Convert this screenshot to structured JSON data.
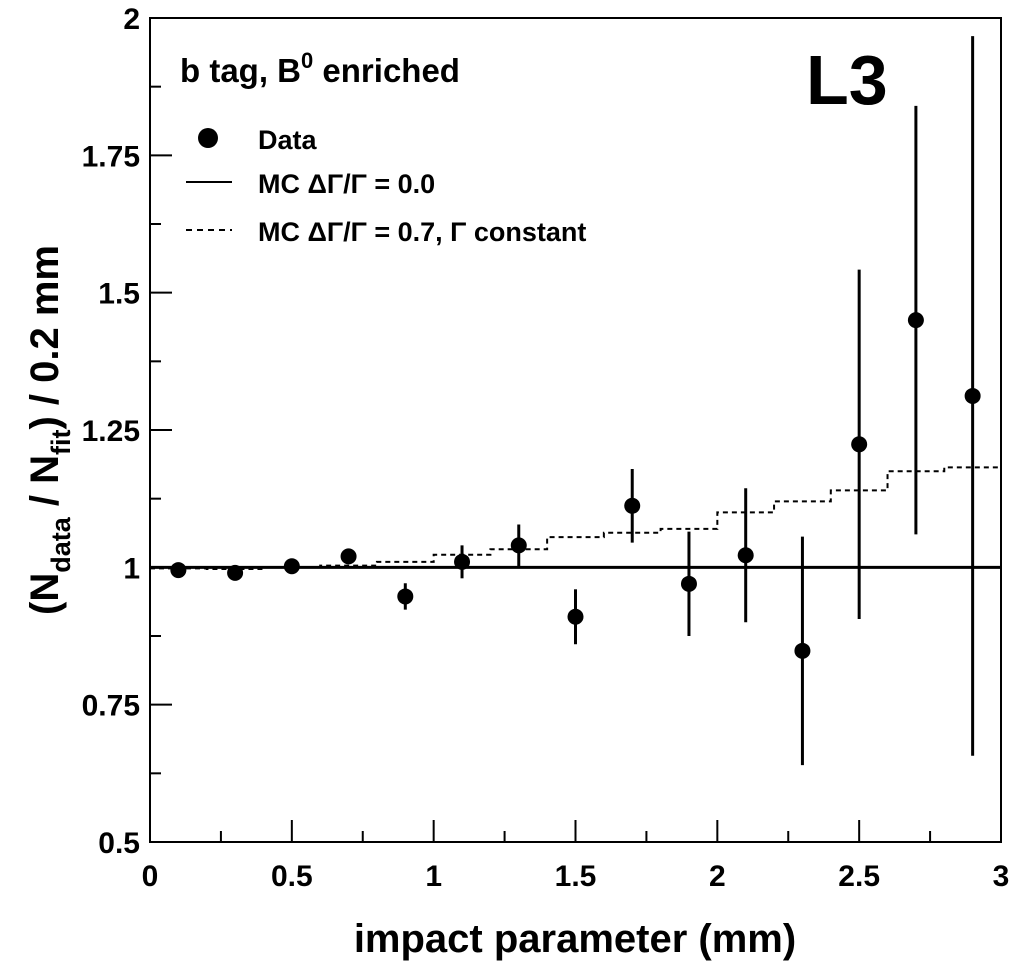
{
  "chart_data": {
    "type": "scatter",
    "title": "",
    "xlabel": "impact parameter (mm)",
    "ylabel": {
      "open": "(N",
      "sub1": "data",
      "mid": " / N",
      "sub2": "fit",
      "close": ") / 0.2 mm"
    },
    "xlim": [
      0,
      3
    ],
    "ylim": [
      0.5,
      2
    ],
    "x_ticks": [
      "0",
      "0.5",
      "1",
      "1.5",
      "2",
      "2.5",
      "3"
    ],
    "y_ticks": [
      "0.5",
      "0.75",
      "1",
      "1.25",
      "1.5",
      "1.75",
      "2"
    ],
    "grid": false,
    "legend_position": "top-left",
    "annotations": {
      "experiment": "L3",
      "selection_main": "b tag, B",
      "selection_sup": "0",
      "selection_tail": " enriched"
    },
    "legend": [
      {
        "name": "Data",
        "marker": "dot"
      },
      {
        "name": "MC ΔΓ/Γ = 0.0",
        "marker": "solid-line"
      },
      {
        "name": "MC ΔΓ/Γ = 0.7, Γ constant",
        "marker": "dashed-line"
      }
    ],
    "series": [
      {
        "name": "Data",
        "kind": "points",
        "x": [
          0.1,
          0.3,
          0.5,
          0.7,
          0.9,
          1.1,
          1.3,
          1.5,
          1.7,
          1.9,
          2.1,
          2.3,
          2.5,
          2.7,
          2.9
        ],
        "y": [
          0.995,
          0.99,
          1.002,
          1.02,
          0.947,
          1.01,
          1.04,
          0.91,
          1.112,
          0.97,
          1.022,
          0.848,
          1.224,
          1.45,
          1.312
        ],
        "y_err": [
          0.005,
          0.008,
          0.008,
          0.01,
          0.024,
          0.03,
          0.038,
          0.05,
          0.067,
          0.095,
          0.122,
          0.208,
          0.318,
          0.39,
          0.655
        ]
      },
      {
        "name": "MC ΔΓ/Γ = 0.0",
        "kind": "line",
        "x": [
          0,
          3
        ],
        "y": [
          1.0,
          1.0
        ]
      },
      {
        "name": "MC ΔΓ/Γ = 0.7, Γ constant",
        "kind": "step",
        "bin_edges": [
          0,
          0.2,
          0.4,
          0.6,
          0.8,
          1.0,
          1.2,
          1.4,
          1.6,
          1.8,
          2.0,
          2.2,
          2.4,
          2.6,
          2.8,
          3.0
        ],
        "y": [
          0.998,
          0.997,
          1.0,
          1.003,
          1.01,
          1.023,
          1.033,
          1.055,
          1.063,
          1.07,
          1.1,
          1.12,
          1.14,
          1.175,
          1.182
        ]
      }
    ]
  }
}
